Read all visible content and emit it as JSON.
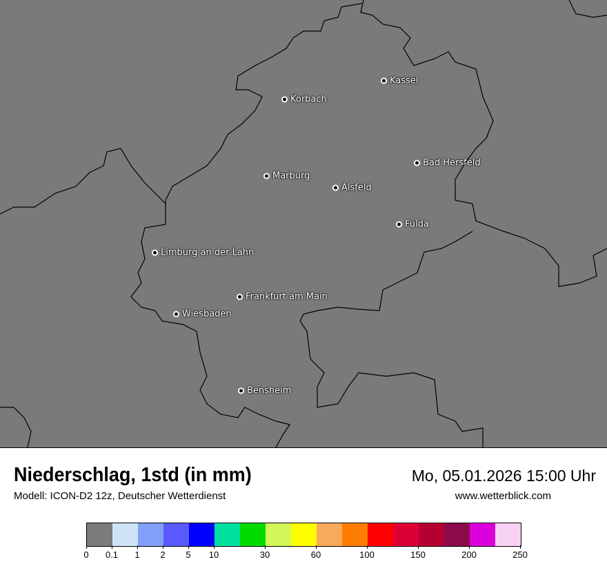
{
  "header": {
    "title": "Niederschlag, 1std (in mm)",
    "model": "Modell: ICON-D2 12z, Deutscher Wetterdienst",
    "datetime": "Mo, 05.01.2026 15:00 Uhr",
    "website": "www.wetterblick.com"
  },
  "map": {
    "background_color": "#7a7a7a",
    "cities": [
      {
        "name": "Kassel"
      },
      {
        "name": "Korbach"
      },
      {
        "name": "Bad Hersfeld"
      },
      {
        "name": "Marburg"
      },
      {
        "name": "Alsfeld"
      },
      {
        "name": "Fulda"
      },
      {
        "name": "Limburg an der Lahn"
      },
      {
        "name": "Frankfurt am Main"
      },
      {
        "name": "Wiesbaden"
      },
      {
        "name": "Bensheim"
      }
    ]
  },
  "legend": {
    "colors": [
      "#7b7b7b",
      "#cfe3f7",
      "#82a0f7",
      "#5a5aff",
      "#0000ff",
      "#00e0a0",
      "#00dc00",
      "#d2f55a",
      "#ffff00",
      "#f8aa5a",
      "#ff7d00",
      "#ff0000",
      "#dc0037",
      "#b40032",
      "#8c0a4b",
      "#dc00dc",
      "#f8d2f5"
    ],
    "ticks": [
      "0",
      "0.1",
      "1",
      "2",
      "5",
      "10",
      "30",
      "60",
      "100",
      "150",
      "200",
      "250"
    ]
  }
}
